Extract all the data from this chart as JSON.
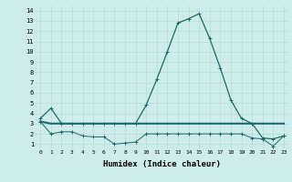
{
  "xlabel": "Humidex (Indice chaleur)",
  "ylabel": "",
  "background_color": "#ceecea",
  "grid_color": "#b8dbd9",
  "line_color": "#1a6b6a",
  "x": [
    0,
    1,
    2,
    3,
    4,
    5,
    6,
    7,
    8,
    9,
    10,
    11,
    12,
    13,
    14,
    15,
    16,
    17,
    18,
    19,
    20,
    21,
    22,
    23
  ],
  "y_max": [
    3.5,
    4.5,
    3.0,
    3.0,
    3.0,
    3.0,
    3.0,
    3.0,
    3.0,
    3.0,
    4.8,
    7.3,
    10.0,
    12.8,
    13.2,
    13.7,
    11.3,
    8.4,
    5.3,
    3.5,
    3.0,
    1.6,
    1.5,
    1.8
  ],
  "y_mean": [
    3.2,
    3.0,
    3.0,
    3.0,
    3.0,
    3.0,
    3.0,
    3.0,
    3.0,
    3.0,
    3.0,
    3.0,
    3.0,
    3.0,
    3.0,
    3.0,
    3.0,
    3.0,
    3.0,
    3.0,
    3.0,
    3.0,
    3.0,
    3.0
  ],
  "y_min": [
    3.2,
    2.0,
    2.2,
    2.2,
    1.8,
    1.7,
    1.7,
    1.0,
    1.1,
    1.2,
    2.0,
    2.0,
    2.0,
    2.0,
    2.0,
    2.0,
    2.0,
    2.0,
    2.0,
    2.0,
    1.6,
    1.5,
    0.8,
    1.8
  ],
  "xticks": [
    0,
    1,
    2,
    3,
    4,
    5,
    6,
    7,
    8,
    9,
    10,
    11,
    12,
    13,
    14,
    15,
    16,
    17,
    18,
    19,
    20,
    21,
    22,
    23
  ],
  "yticks": [
    1,
    2,
    3,
    4,
    5,
    6,
    7,
    8,
    9,
    10,
    11,
    12,
    13,
    14
  ]
}
